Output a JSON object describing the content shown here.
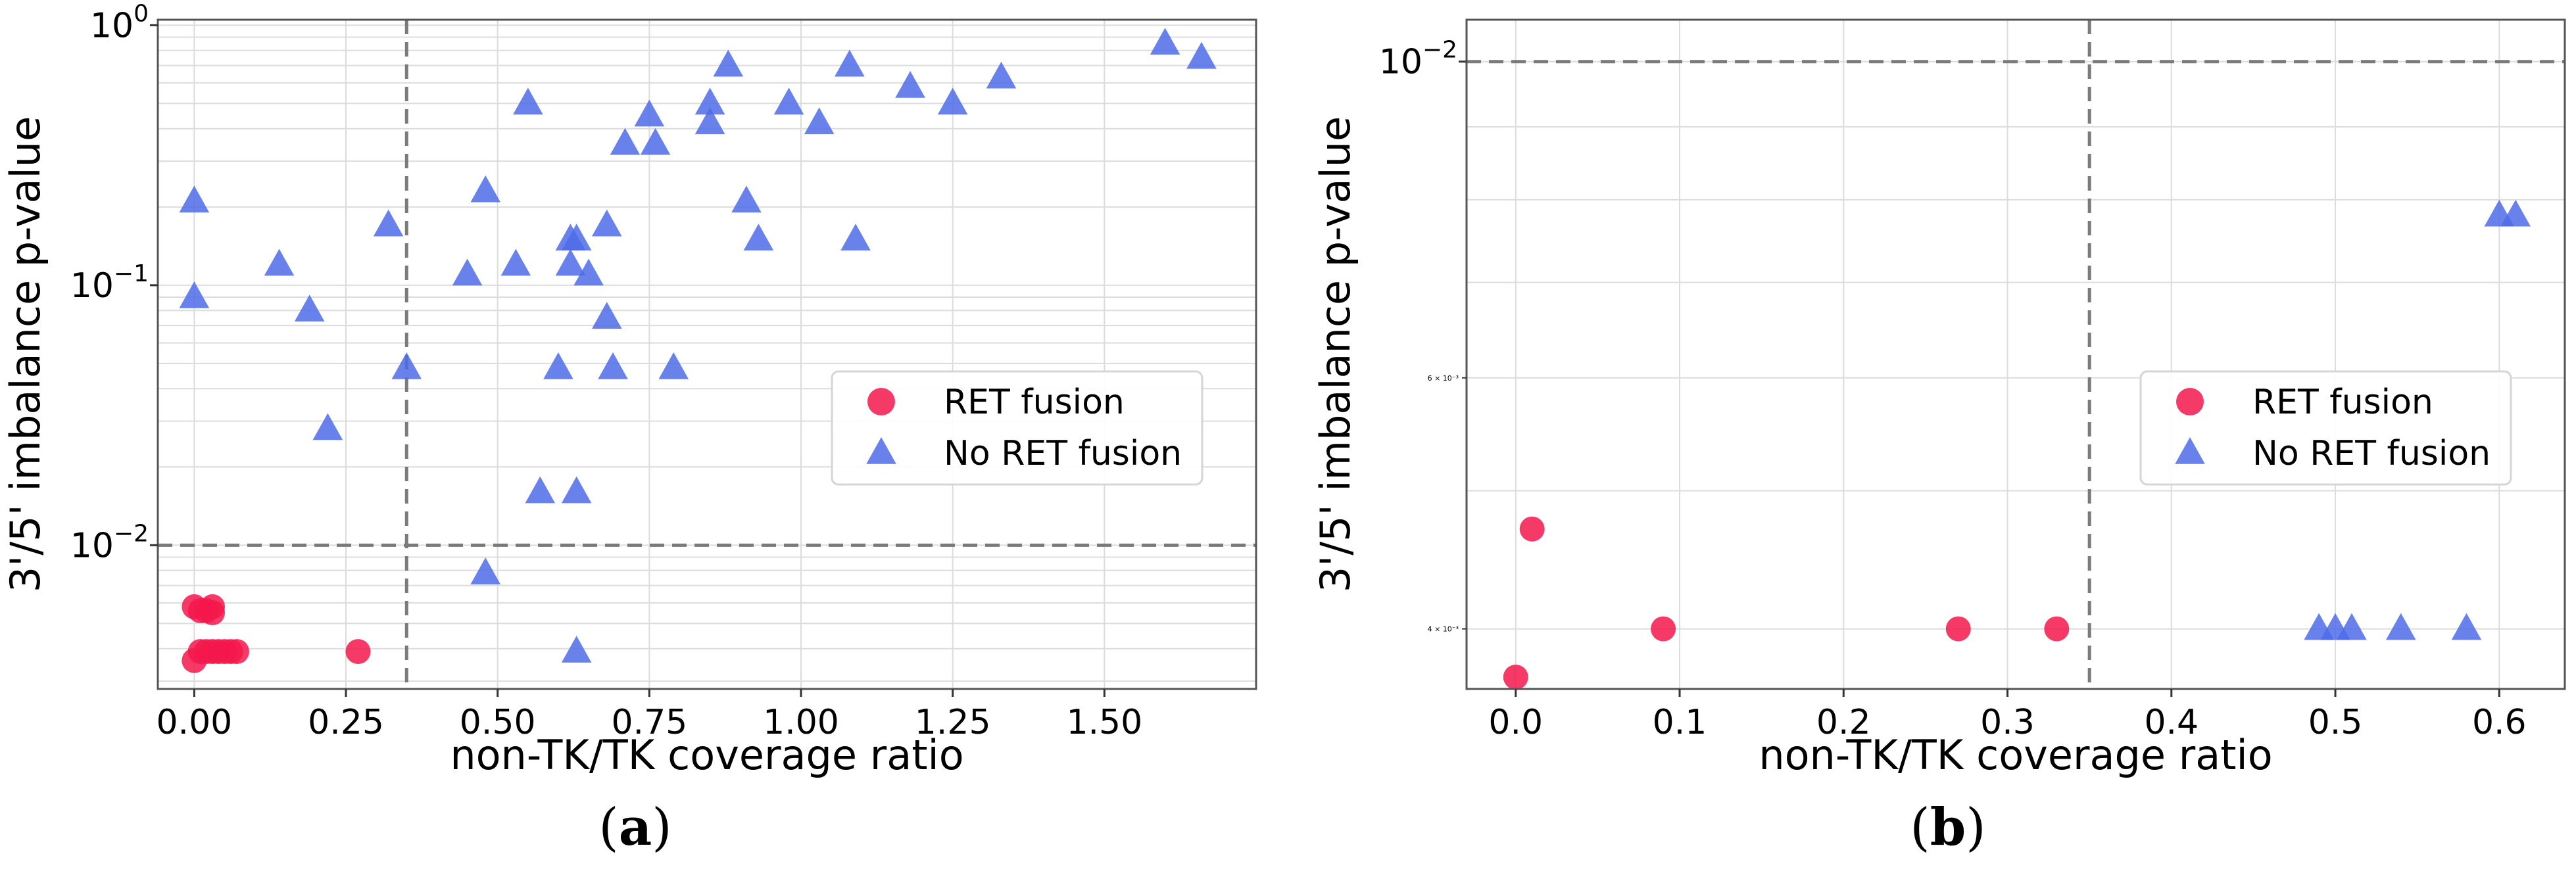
{
  "chart_data": [
    {
      "panel": "a",
      "type": "scatter",
      "xlabel": "non-TK/TK coverage ratio",
      "ylabel": "3'/5' imbalance p-value",
      "yscale": "log",
      "xlim": [
        -0.06,
        1.75
      ],
      "ylim": [
        0.0028,
        1.05
      ],
      "xticks": [
        0.0,
        0.25,
        0.5,
        0.75,
        1.0,
        1.25,
        1.5
      ],
      "xtick_labels": [
        "0.00",
        "0.25",
        "0.50",
        "0.75",
        "1.00",
        "1.25",
        "1.50"
      ],
      "yticks": [
        {
          "value": 1,
          "base": "10",
          "exp": "0"
        },
        {
          "value": 0.1,
          "base": "10",
          "exp": "−1"
        },
        {
          "value": 0.01,
          "base": "10",
          "exp": "−2"
        }
      ],
      "threshold_x": 0.35,
      "threshold_y": 0.01,
      "legend": {
        "position": "center-right",
        "entries": [
          "RET fusion",
          "No RET fusion"
        ]
      },
      "series": [
        {
          "name": "RET fusion",
          "marker": "circle",
          "color": "#f5184c",
          "points": [
            [
              0.0,
              0.0058
            ],
            [
              0.01,
              0.0056
            ],
            [
              0.02,
              0.0056
            ],
            [
              0.03,
              0.0058
            ],
            [
              0.03,
              0.0055
            ],
            [
              0.0,
              0.0036
            ],
            [
              0.01,
              0.0039
            ],
            [
              0.02,
              0.0039
            ],
            [
              0.03,
              0.0039
            ],
            [
              0.04,
              0.0039
            ],
            [
              0.05,
              0.0039
            ],
            [
              0.06,
              0.0039
            ],
            [
              0.07,
              0.0039
            ],
            [
              0.27,
              0.0039
            ]
          ]
        },
        {
          "name": "No RET fusion",
          "marker": "triangle",
          "color": "#4f6be8",
          "points": [
            [
              0.0,
              0.21
            ],
            [
              0.0,
              0.09
            ],
            [
              0.14,
              0.12
            ],
            [
              0.19,
              0.08
            ],
            [
              0.22,
              0.028
            ],
            [
              0.32,
              0.17
            ],
            [
              0.35,
              0.048
            ],
            [
              0.45,
              0.11
            ],
            [
              0.48,
              0.23
            ],
            [
              0.48,
              0.0078
            ],
            [
              0.53,
              0.12
            ],
            [
              0.55,
              0.5
            ],
            [
              0.57,
              0.016
            ],
            [
              0.6,
              0.048
            ],
            [
              0.62,
              0.15
            ],
            [
              0.62,
              0.12
            ],
            [
              0.63,
              0.15
            ],
            [
              0.63,
              0.016
            ],
            [
              0.63,
              0.0039
            ],
            [
              0.65,
              0.11
            ],
            [
              0.68,
              0.17
            ],
            [
              0.68,
              0.075
            ],
            [
              0.69,
              0.048
            ],
            [
              0.71,
              0.35
            ],
            [
              0.75,
              0.45
            ],
            [
              0.76,
              0.35
            ],
            [
              0.79,
              0.048
            ],
            [
              0.85,
              0.5
            ],
            [
              0.85,
              0.42
            ],
            [
              0.88,
              0.7
            ],
            [
              0.91,
              0.21
            ],
            [
              0.93,
              0.15
            ],
            [
              0.98,
              0.5
            ],
            [
              1.03,
              0.42
            ],
            [
              1.08,
              0.7
            ],
            [
              1.09,
              0.15
            ],
            [
              1.18,
              0.58
            ],
            [
              1.25,
              0.5
            ],
            [
              1.33,
              0.63
            ],
            [
              1.6,
              0.85
            ],
            [
              1.66,
              0.75
            ]
          ]
        }
      ]
    },
    {
      "panel": "b",
      "type": "scatter",
      "xlabel": "non-TK/TK coverage ratio",
      "ylabel": "3'/5' imbalance p-value",
      "yscale": "log",
      "xlim": [
        -0.03,
        0.64
      ],
      "ylim": [
        0.00363,
        0.0107
      ],
      "xticks": [
        0.0,
        0.1,
        0.2,
        0.3,
        0.4,
        0.5,
        0.6
      ],
      "xtick_labels": [
        "0.0",
        "0.1",
        "0.2",
        "0.3",
        "0.4",
        "0.5",
        "0.6"
      ],
      "yticks": [
        {
          "value": 0.01,
          "base": "10",
          "exp": "−2"
        }
      ],
      "yminor_ticks": [
        {
          "value": 0.006,
          "label": "6 × 10⁻³"
        },
        {
          "value": 0.004,
          "label": "4 × 10⁻³"
        }
      ],
      "threshold_x": 0.35,
      "threshold_y": 0.01,
      "legend": {
        "position": "center-right",
        "entries": [
          "RET fusion",
          "No RET fusion"
        ]
      },
      "series": [
        {
          "name": "RET fusion",
          "marker": "circle",
          "color": "#f5184c",
          "points": [
            [
              0.0,
              0.0037
            ],
            [
              0.01,
              0.0047
            ],
            [
              0.09,
              0.004
            ],
            [
              0.27,
              0.004
            ],
            [
              0.33,
              0.004
            ]
          ]
        },
        {
          "name": "No RET fusion",
          "marker": "triangle",
          "color": "#4f6be8",
          "points": [
            [
              0.49,
              0.004
            ],
            [
              0.5,
              0.004
            ],
            [
              0.51,
              0.004
            ],
            [
              0.54,
              0.004
            ],
            [
              0.58,
              0.004
            ],
            [
              0.6,
              0.0078
            ],
            [
              0.61,
              0.0078
            ]
          ]
        }
      ]
    }
  ],
  "panel_labels": [
    {
      "paren_open": "(",
      "letter": "a",
      "paren_close": ")"
    },
    {
      "paren_open": "(",
      "letter": "b",
      "paren_close": ")"
    }
  ]
}
